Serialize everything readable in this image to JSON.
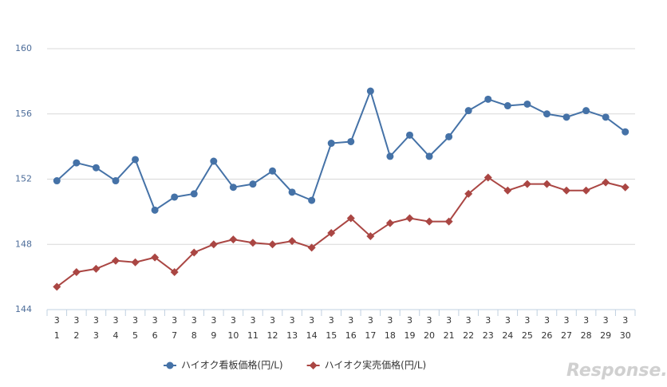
{
  "chart_data": {
    "type": "line",
    "categories": [
      [
        "3",
        "1"
      ],
      [
        "3",
        "2"
      ],
      [
        "3",
        "3"
      ],
      [
        "3",
        "4"
      ],
      [
        "3",
        "5"
      ],
      [
        "3",
        "6"
      ],
      [
        "3",
        "7"
      ],
      [
        "3",
        "8"
      ],
      [
        "3",
        "9"
      ],
      [
        "3",
        "10"
      ],
      [
        "3",
        "11"
      ],
      [
        "3",
        "12"
      ],
      [
        "3",
        "13"
      ],
      [
        "3",
        "14"
      ],
      [
        "3",
        "15"
      ],
      [
        "3",
        "16"
      ],
      [
        "3",
        "17"
      ],
      [
        "3",
        "18"
      ],
      [
        "3",
        "19"
      ],
      [
        "3",
        "20"
      ],
      [
        "3",
        "21"
      ],
      [
        "3",
        "22"
      ],
      [
        "3",
        "23"
      ],
      [
        "3",
        "24"
      ],
      [
        "3",
        "25"
      ],
      [
        "3",
        "26"
      ],
      [
        "3",
        "27"
      ],
      [
        "3",
        "28"
      ],
      [
        "3",
        "29"
      ],
      [
        "3",
        "30"
      ]
    ],
    "series": [
      {
        "name": "ハイオク看板価格(円/L)",
        "color": "#4572a7",
        "marker": "circle",
        "values": [
          151.9,
          153.0,
          152.7,
          151.9,
          153.2,
          150.1,
          150.9,
          151.1,
          153.1,
          151.5,
          151.7,
          152.5,
          151.2,
          150.7,
          154.2,
          154.3,
          157.4,
          153.4,
          154.7,
          153.4,
          154.6,
          156.2,
          156.9,
          156.5,
          156.6,
          156.0,
          155.8,
          156.2,
          155.8,
          154.9
        ]
      },
      {
        "name": "ハイオク実売価格(円/L)",
        "color": "#aa4643",
        "marker": "diamond",
        "values": [
          145.4,
          146.3,
          146.5,
          147.0,
          146.9,
          147.2,
          146.3,
          147.5,
          148.0,
          148.3,
          148.1,
          148.0,
          148.2,
          147.8,
          148.7,
          149.6,
          148.5,
          149.3,
          149.6,
          149.4,
          149.4,
          151.1,
          152.1,
          151.3,
          151.7,
          151.7,
          151.3,
          151.3,
          151.8,
          151.5
        ]
      }
    ],
    "ylim": [
      144,
      160
    ],
    "yticks": [
      144,
      148,
      152,
      156,
      160
    ],
    "grid": true,
    "legend": "bottom",
    "watermark": "Response."
  }
}
